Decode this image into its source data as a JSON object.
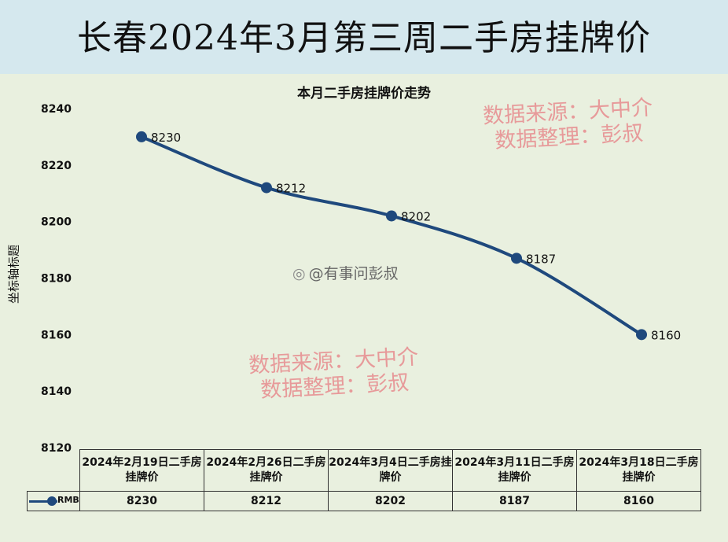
{
  "header": {
    "title": "长春2024年3月第三周二手房挂牌价"
  },
  "chart_data": {
    "type": "line",
    "title": "本月二手房挂牌价走势",
    "ylabel": "坐标轴标题",
    "xlabel": "",
    "ylim": [
      8120,
      8240
    ],
    "yticks": [
      8120,
      8140,
      8160,
      8180,
      8200,
      8220,
      8240
    ],
    "categories": [
      "2024年2月19日二手房挂牌价",
      "2024年2月26日二手房挂牌价",
      "2024年3月4日二手房挂牌价",
      "2024年3月11日二手房挂牌价",
      "2024年3月18日二手房挂牌价"
    ],
    "series": [
      {
        "name": "RMB",
        "values": [
          8230,
          8212,
          8202,
          8187,
          8160
        ],
        "color": "#1f497d"
      }
    ],
    "data_table": true,
    "legend": "data-table-left",
    "grid": false
  },
  "watermarks": {
    "line1": "数据来源：大中介",
    "line2": "数据整理：彭叔"
  },
  "weibo": {
    "text": "@有事问彭叔"
  }
}
